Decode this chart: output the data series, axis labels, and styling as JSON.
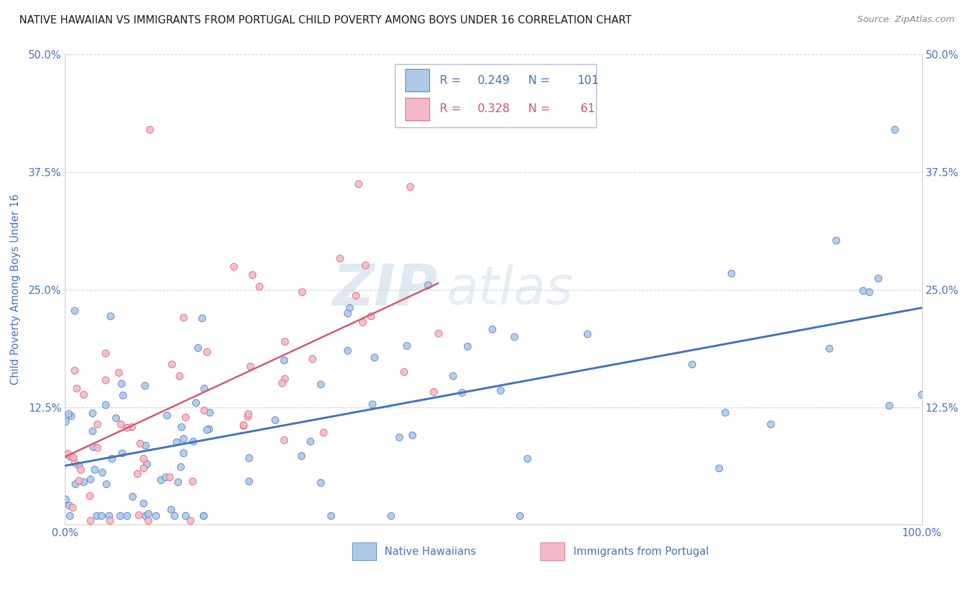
{
  "title": "NATIVE HAWAIIAN VS IMMIGRANTS FROM PORTUGAL CHILD POVERTY AMONG BOYS UNDER 16 CORRELATION CHART",
  "source": "Source: ZipAtlas.com",
  "ylabel": "Child Poverty Among Boys Under 16",
  "xlim": [
    0.0,
    1.0
  ],
  "ylim": [
    0.0,
    0.5
  ],
  "ytick_labels": [
    "",
    "12.5%",
    "25.0%",
    "37.5%",
    "50.0%"
  ],
  "ytick_vals": [
    0.0,
    0.125,
    0.25,
    0.375,
    0.5
  ],
  "xtick_vals": [
    0.0,
    0.1,
    0.2,
    0.3,
    0.4,
    0.5,
    0.6,
    0.7,
    0.8,
    0.9,
    1.0
  ],
  "xtick_labels": [
    "0.0%",
    "",
    "",
    "",
    "",
    "",
    "",
    "",
    "",
    "",
    "100.0%"
  ],
  "r_nh": 0.249,
  "n_nh": 101,
  "r_port": 0.328,
  "n_port": 61,
  "color_nh": "#adc8e8",
  "color_port": "#f5b8c8",
  "line_color_nh": "#4472c4",
  "line_color_port": "#d9546a",
  "watermark_top": "ZIP",
  "watermark_bot": "atlas",
  "title_color": "#1a1a1a",
  "axis_label_color": "#4472c4",
  "tick_color": "#4472c4",
  "grid_color": "#d0d0d0",
  "background_color": "#ffffff",
  "legend_label_color": "#1a1a1a"
}
